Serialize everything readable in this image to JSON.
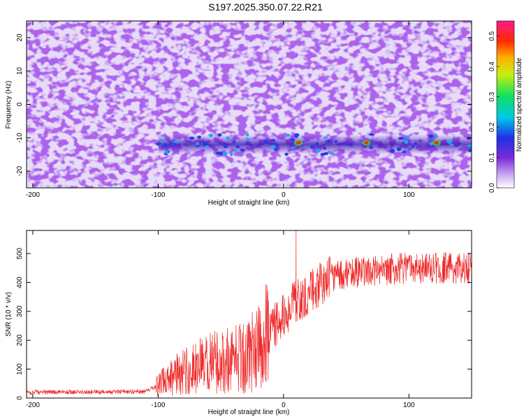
{
  "title": "S197.2025.350.07.22.R21",
  "colors": {
    "line": "#ee2a2a",
    "axis": "#000000",
    "background": "#ffffff"
  },
  "chart_data": [
    {
      "type": "heatmap",
      "xlabel": "Height of straight line (km)",
      "ylabel": "Frequency (Hz)",
      "xlim": [
        -205,
        150
      ],
      "ylim": [
        -25,
        25
      ],
      "xticks": [
        -200,
        -100,
        0,
        100
      ],
      "yticks": [
        -20,
        -10,
        0,
        10,
        20
      ],
      "colorbar": {
        "label": "Normalized spectral amplitude",
        "range": [
          0,
          0.55
        ],
        "ticks": [
          0.0,
          0.1,
          0.2,
          0.3,
          0.4,
          0.5
        ],
        "colormap": "rainbow (white-purple-blue-cyan-green-yellow-red-magenta)"
      },
      "features": {
        "band_center_hz": -12,
        "band_start_km": -100,
        "hotspots_km": [
          12,
          66,
          122
        ]
      }
    },
    {
      "type": "line",
      "xlabel": "Height of straight line (km)",
      "ylabel": "SNR (10 * v/v)",
      "xlim": [
        -205,
        150
      ],
      "ylim": [
        0,
        580
      ],
      "xticks": [
        -200,
        -100,
        0,
        100
      ],
      "yticks": [
        0,
        100,
        200,
        300,
        400,
        500
      ],
      "profile": [
        [
          -205,
          20
        ],
        [
          -110,
          22
        ],
        [
          -100,
          45
        ],
        [
          -90,
          75
        ],
        [
          -80,
          90
        ],
        [
          -70,
          105
        ],
        [
          -60,
          120
        ],
        [
          -50,
          130
        ],
        [
          -40,
          140
        ],
        [
          -30,
          150
        ],
        [
          -20,
          170
        ],
        [
          -12,
          230
        ],
        [
          0,
          280
        ],
        [
          10,
          330
        ],
        [
          20,
          370
        ],
        [
          30,
          400
        ],
        [
          40,
          420
        ],
        [
          50,
          430
        ],
        [
          70,
          440
        ],
        [
          100,
          450
        ],
        [
          150,
          450
        ]
      ],
      "spike_peak": {
        "x": 10,
        "y": 580
      }
    }
  ]
}
